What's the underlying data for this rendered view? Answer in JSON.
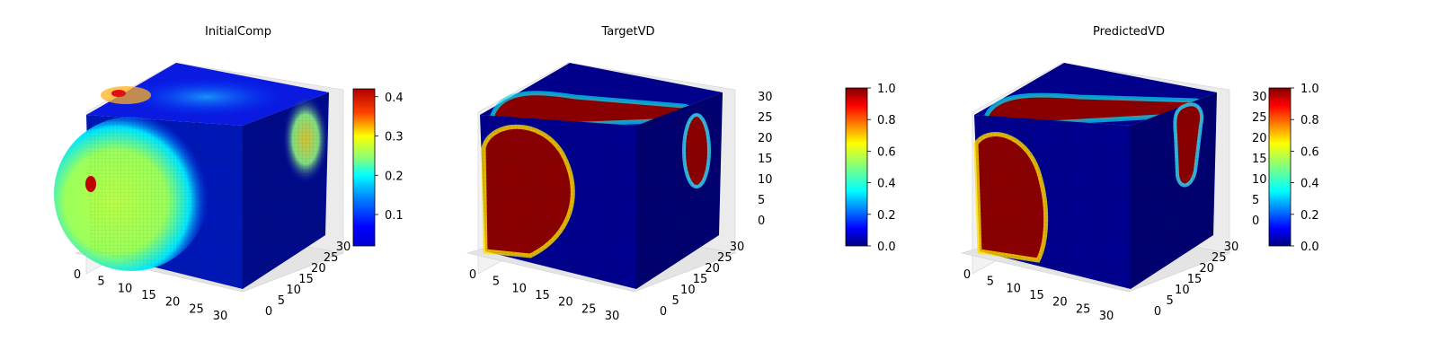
{
  "chart_data": [
    {
      "type": "heatmap",
      "title": "InitialComp",
      "x_ticks": [
        "0",
        "5",
        "10",
        "15",
        "20",
        "25",
        "30"
      ],
      "y_ticks": [
        "0",
        "5",
        "10",
        "15",
        "20",
        "25",
        "30"
      ],
      "z_ticks": [],
      "colorbar": {
        "ticks": [
          "0.1",
          "0.2",
          "0.3",
          "0.4"
        ],
        "range": [
          0.02,
          0.42
        ],
        "tick_values": [
          0.1,
          0.2,
          0.3,
          0.4
        ]
      },
      "faces": {
        "front": "Large green-yellow region (~0.25) over the left portion with a small red spot (~0.4) on the left edge; dark-blue elsewhere",
        "top": "Light-blue band with a red-yellow spot near the back-left corner",
        "side": "Yellow-green blob (~0.25) on the upper right face"
      }
    },
    {
      "type": "heatmap",
      "title": "TargetVD",
      "x_ticks": [
        "0",
        "5",
        "10",
        "15",
        "20",
        "25",
        "30"
      ],
      "y_ticks": [
        "0",
        "5",
        "10",
        "15",
        "20",
        "25",
        "30"
      ],
      "z_ticks": [
        "0",
        "5",
        "10",
        "15",
        "20",
        "25",
        "30"
      ],
      "colorbar": {
        "ticks": [
          "0.0",
          "0.2",
          "0.4",
          "0.6",
          "0.8",
          "1.0"
        ],
        "range": [
          0,
          1
        ],
        "tick_values": [
          0,
          0.2,
          0.4,
          0.6,
          0.8,
          1.0
        ]
      },
      "faces": {
        "front": "Dark-red circular region (1.0) on the left with yellow-green rim; rest 0.0",
        "top": "Dark-red elongated band along the front edge",
        "side": "Dark-red elongated ellipse on the upper side face"
      }
    },
    {
      "type": "heatmap",
      "title": "PredictedVD",
      "x_ticks": [
        "0",
        "5",
        "10",
        "15",
        "20",
        "25",
        "30"
      ],
      "y_ticks": [
        "0",
        "5",
        "10",
        "15",
        "20",
        "25",
        "30"
      ],
      "z_ticks": [
        "0",
        "5",
        "10",
        "15",
        "20",
        "25",
        "30"
      ],
      "colorbar": {
        "ticks": [
          "0.0",
          "0.2",
          "0.4",
          "0.6",
          "0.8",
          "1.0"
        ],
        "range": [
          0,
          1
        ],
        "tick_values": [
          0,
          0.2,
          0.4,
          0.6,
          0.8,
          1.0
        ]
      },
      "faces": {
        "front": "Dark-red half-disc region (1.0) on the left with blue-yellow rim; rest 0.0",
        "top": "Dark-red band along the front edge",
        "side": "Dark-red elongated stripe on the side face"
      }
    }
  ]
}
